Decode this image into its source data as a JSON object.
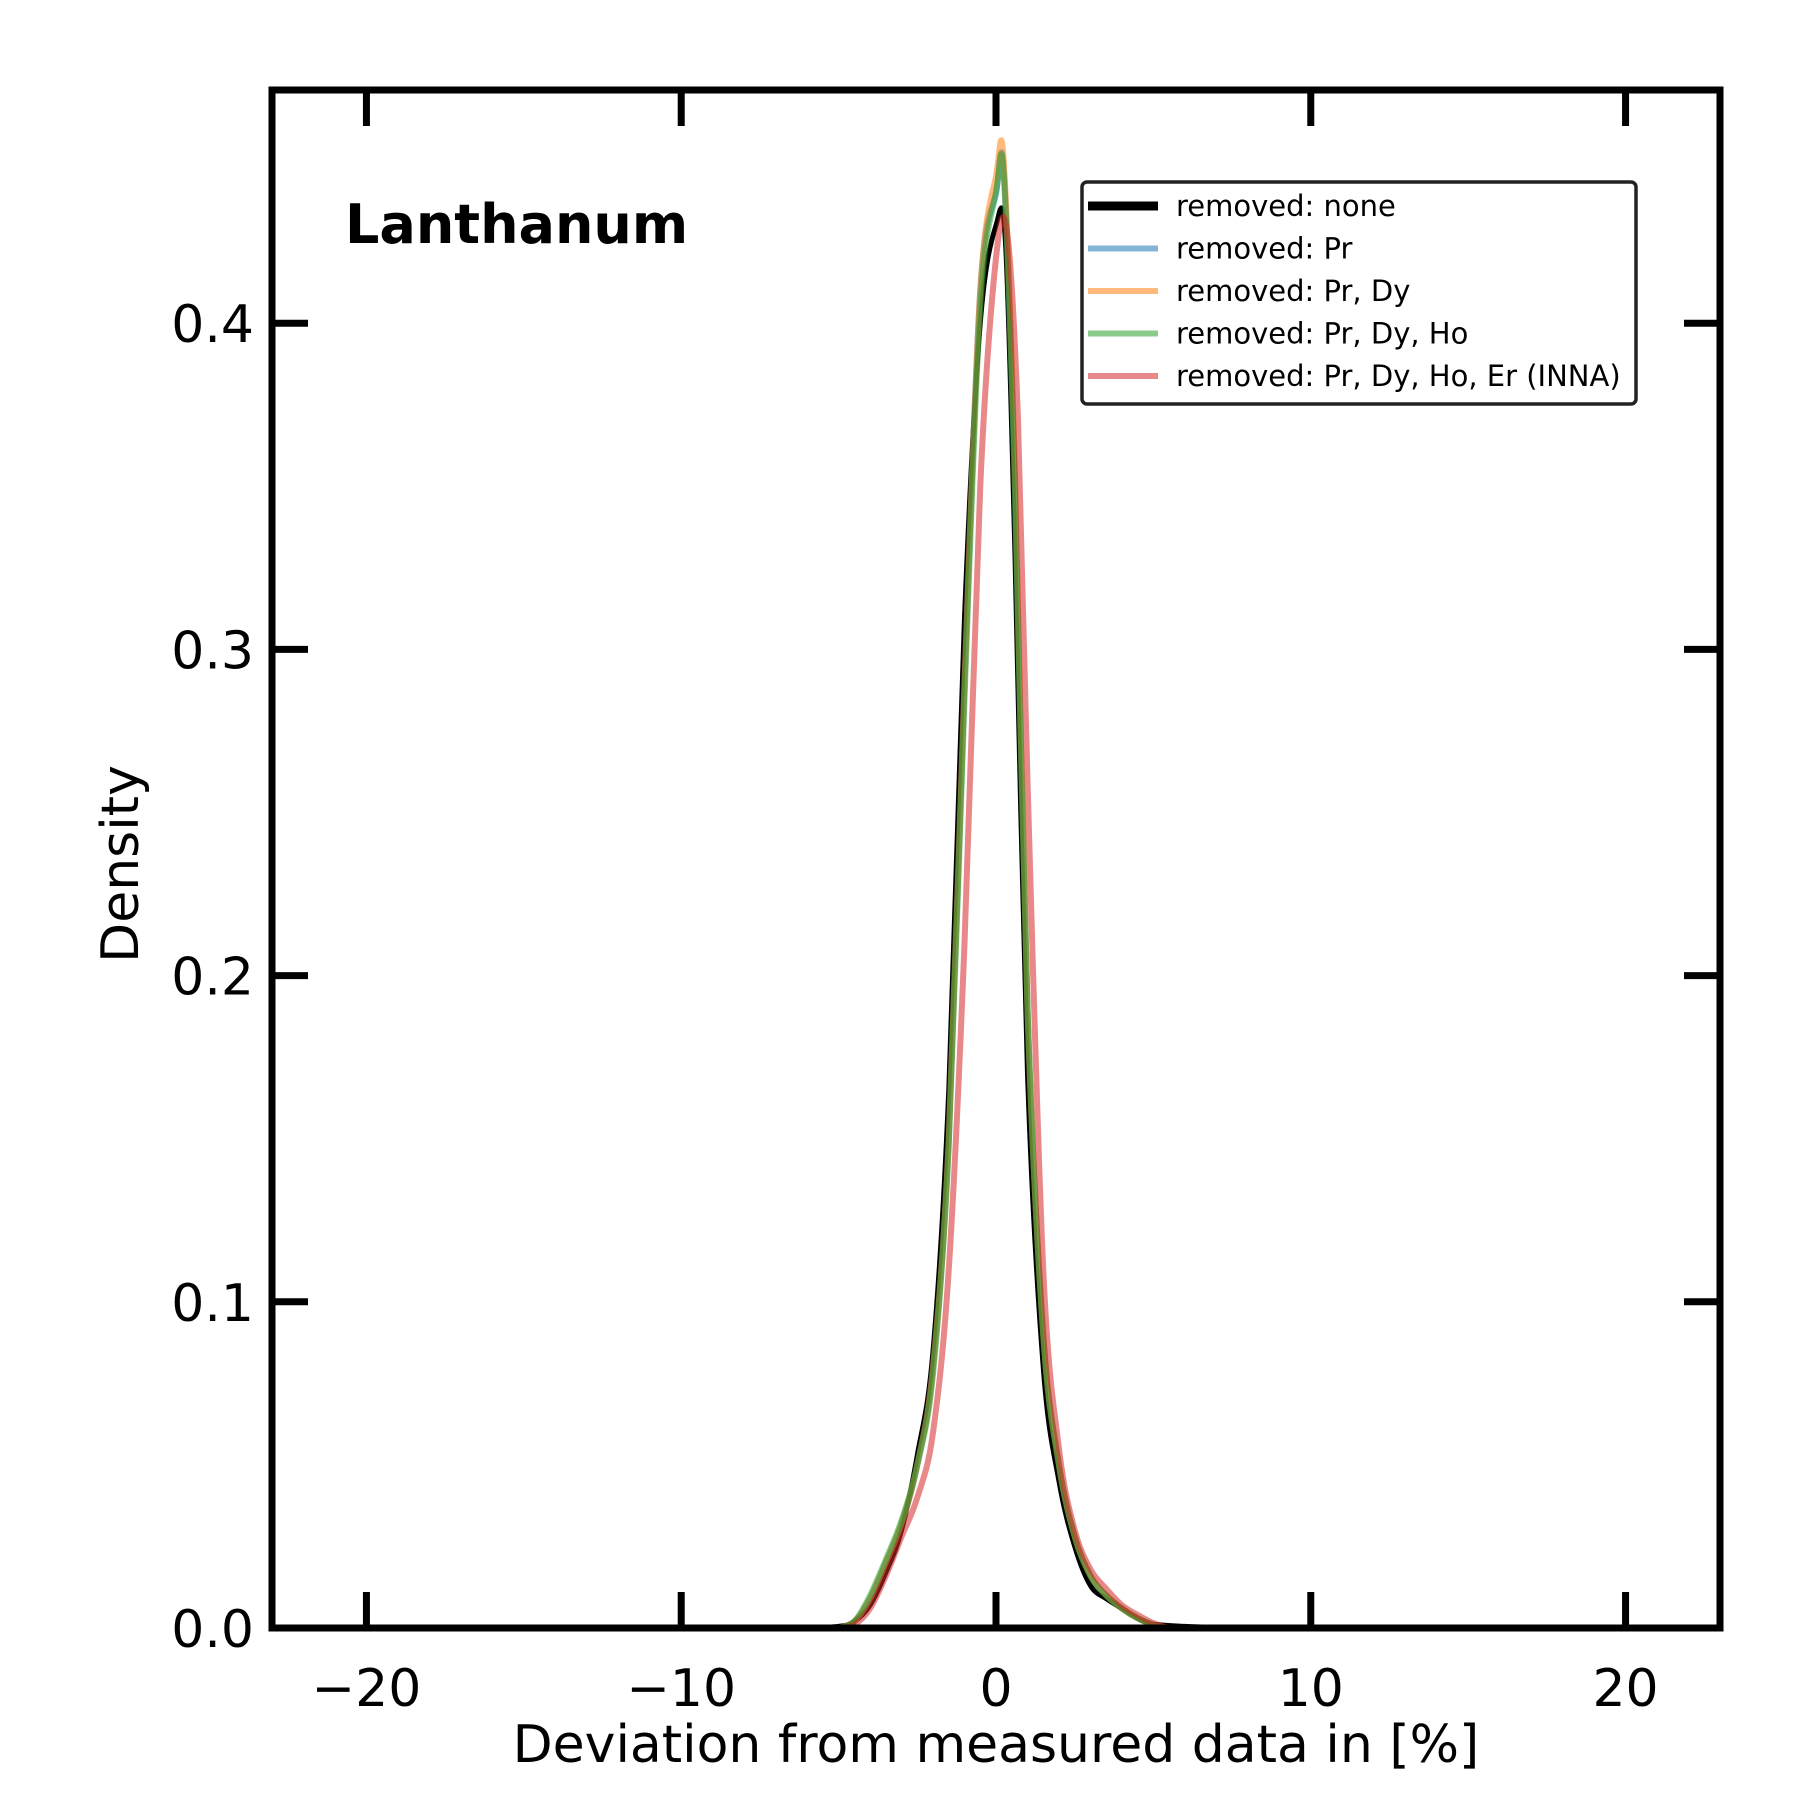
{
  "chart_data": {
    "type": "line",
    "annotation": "Lanthanum",
    "xlabel": "Deviation from measured data in [%]",
    "ylabel": "Density",
    "xlim": [
      -23,
      23
    ],
    "ylim": [
      0,
      0.4715
    ],
    "x_ticks": [
      -20,
      -10,
      0,
      10,
      20
    ],
    "x_tick_labels": [
      "−20",
      "−10",
      "0",
      "10",
      "20"
    ],
    "y_ticks": [
      0.0,
      0.1,
      0.2,
      0.3,
      0.4
    ],
    "y_tick_labels": [
      "0.0",
      "0.1",
      "0.2",
      "0.3",
      "0.4"
    ],
    "grid": false,
    "legend_position": "top-right",
    "series": [
      {
        "name": "removed: none",
        "color": "#000000",
        "x": [
          -6.2,
          -5.0,
          -4.5,
          -4.0,
          -3.5,
          -3.0,
          -2.5,
          -2.0,
          -1.5,
          -1.0,
          -0.5,
          0.0,
          0.3,
          0.6,
          1.0,
          1.5,
          2.0,
          2.5,
          3.0,
          3.5,
          4.0,
          4.5,
          5.0,
          6.0,
          7.0,
          8.5
        ],
        "y": [
          0.0,
          0.0005,
          0.002,
          0.007,
          0.017,
          0.03,
          0.053,
          0.085,
          0.165,
          0.31,
          0.4,
          0.43,
          0.425,
          0.33,
          0.17,
          0.08,
          0.045,
          0.025,
          0.013,
          0.009,
          0.006,
          0.003,
          0.0012,
          0.0005,
          0.0002,
          0.0
        ]
      },
      {
        "name": "removed: Pr",
        "color": "#1f77b4",
        "x": [
          -5.0,
          -4.5,
          -4.0,
          -3.5,
          -3.0,
          -2.5,
          -2.0,
          -1.5,
          -1.0,
          -0.5,
          0.0,
          0.25,
          0.6,
          1.0,
          1.5,
          2.0,
          2.5,
          3.0,
          3.5,
          4.0,
          4.5,
          5.0,
          5.5
        ],
        "y": [
          0.0,
          0.002,
          0.009,
          0.02,
          0.032,
          0.05,
          0.08,
          0.15,
          0.29,
          0.41,
          0.44,
          0.446,
          0.35,
          0.19,
          0.09,
          0.05,
          0.028,
          0.016,
          0.01,
          0.006,
          0.003,
          0.001,
          0.0
        ]
      },
      {
        "name": "removed: Pr, Dy",
        "color": "#ff7f0e",
        "x": [
          -5.0,
          -4.5,
          -4.0,
          -3.5,
          -3.0,
          -2.5,
          -2.0,
          -1.5,
          -1.0,
          -0.5,
          0.0,
          0.25,
          0.6,
          1.0,
          1.5,
          2.0,
          2.5,
          3.0,
          3.5,
          4.0,
          4.5,
          5.0,
          5.5
        ],
        "y": [
          0.0,
          0.002,
          0.009,
          0.02,
          0.032,
          0.05,
          0.08,
          0.15,
          0.29,
          0.41,
          0.445,
          0.449,
          0.355,
          0.19,
          0.09,
          0.05,
          0.028,
          0.016,
          0.01,
          0.006,
          0.003,
          0.001,
          0.0
        ]
      },
      {
        "name": "removed: Pr, Dy, Ho",
        "color": "#2ca02c",
        "x": [
          -5.0,
          -4.5,
          -4.0,
          -3.5,
          -3.0,
          -2.5,
          -2.0,
          -1.5,
          -1.0,
          -0.5,
          0.0,
          0.25,
          0.6,
          1.0,
          1.5,
          2.0,
          2.5,
          3.0,
          3.5,
          4.0,
          4.5,
          5.0,
          5.5
        ],
        "y": [
          0.0,
          0.002,
          0.01,
          0.021,
          0.033,
          0.05,
          0.078,
          0.148,
          0.285,
          0.405,
          0.44,
          0.445,
          0.35,
          0.19,
          0.09,
          0.05,
          0.028,
          0.016,
          0.01,
          0.006,
          0.003,
          0.001,
          0.0
        ]
      },
      {
        "name": "removed: Pr, Dy, Ho, Er (INNA)",
        "color": "#d62728",
        "x": [
          -5.0,
          -4.5,
          -4.0,
          -3.5,
          -3.0,
          -2.5,
          -2.0,
          -1.5,
          -1.0,
          -0.5,
          0.0,
          0.35,
          0.7,
          1.0,
          1.5,
          2.0,
          2.5,
          3.0,
          3.5,
          4.0,
          4.5,
          5.0,
          5.5
        ],
        "y": [
          0.0,
          0.001,
          0.006,
          0.016,
          0.028,
          0.04,
          0.06,
          0.11,
          0.21,
          0.35,
          0.42,
          0.428,
          0.37,
          0.26,
          0.11,
          0.055,
          0.03,
          0.018,
          0.012,
          0.007,
          0.004,
          0.0015,
          0.0
        ]
      }
    ]
  }
}
